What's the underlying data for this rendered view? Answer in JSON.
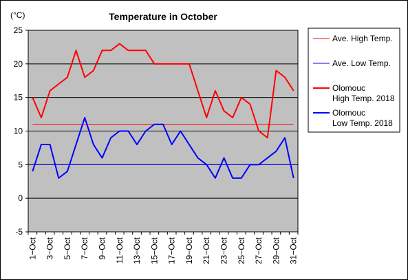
{
  "chart_data": {
    "type": "line",
    "title": "Temperature in October",
    "unit_label": "(°C)",
    "ylim": [
      -5,
      25
    ],
    "yticks": [
      -5,
      0,
      5,
      10,
      15,
      20,
      25
    ],
    "x": [
      "1-Oct",
      "2-Oct",
      "3-Oct",
      "4-Oct",
      "5-Oct",
      "6-Oct",
      "7-Oct",
      "8-Oct",
      "9-Oct",
      "10-Oct",
      "11-Oct",
      "12-Oct",
      "13-Oct",
      "14-Oct",
      "15-Oct",
      "16-Oct",
      "17-Oct",
      "18-Oct",
      "19-Oct",
      "20-Oct",
      "21-Oct",
      "22-Oct",
      "23-Oct",
      "24-Oct",
      "25-Oct",
      "26-Oct",
      "27-Oct",
      "28-Oct",
      "29-Oct",
      "30-Oct",
      "31-Oct"
    ],
    "xtick_labels": [
      "1-Oct",
      "3-Oct",
      "5-Oct",
      "7-Oct",
      "9-Oct",
      "11-Oct",
      "13-Oct",
      "15-Oct",
      "17-Oct",
      "19-Oct",
      "21-Oct",
      "23-Oct",
      "25-Oct",
      "27-Oct",
      "29-Oct",
      "31-Oct"
    ],
    "grid": true,
    "background": "#c0c0c0",
    "legend_position": "right",
    "series": [
      {
        "name": "Ave. High Temp.",
        "color": "#ff0000",
        "width": 1,
        "values": [
          11,
          11,
          11,
          11,
          11,
          11,
          11,
          11,
          11,
          11,
          11,
          11,
          11,
          11,
          11,
          11,
          11,
          11,
          11,
          11,
          11,
          11,
          11,
          11,
          11,
          11,
          11,
          11,
          11,
          11,
          11
        ]
      },
      {
        "name": "Ave. Low Temp.",
        "color": "#0000ff",
        "width": 1,
        "values": [
          5,
          5,
          5,
          5,
          5,
          5,
          5,
          5,
          5,
          5,
          5,
          5,
          5,
          5,
          5,
          5,
          5,
          5,
          5,
          5,
          5,
          5,
          5,
          5,
          5,
          5,
          5,
          5,
          5,
          5,
          5
        ]
      },
      {
        "name": "Olomouc\nHigh Temp. 2018",
        "color": "#ff0000",
        "width": 2,
        "values": [
          15,
          12,
          16,
          17,
          18,
          22,
          18,
          19,
          22,
          22,
          23,
          22,
          22,
          22,
          20,
          20,
          20,
          20,
          20,
          16,
          12,
          16,
          13,
          12,
          15,
          14,
          10,
          9,
          19,
          18,
          16
        ]
      },
      {
        "name": "Olomouc\nLow Temp. 2018",
        "color": "#0000ff",
        "width": 2,
        "values": [
          4,
          8,
          8,
          3,
          4,
          8,
          12,
          8,
          6,
          9,
          10,
          10,
          8,
          10,
          11,
          11,
          8,
          10,
          8,
          6,
          5,
          3,
          6,
          3,
          3,
          5,
          5,
          6,
          7,
          9,
          3
        ]
      }
    ],
    "legend": [
      {
        "lines": [
          "Ave. High Temp."
        ],
        "color": "#ff0000",
        "width": 1
      },
      {
        "lines": [
          "Ave. Low Temp."
        ],
        "color": "#0000ff",
        "width": 1
      },
      {
        "lines": [
          "Olomouc",
          "High Temp. 2018"
        ],
        "color": "#ff0000",
        "width": 2
      },
      {
        "lines": [
          "Olomouc",
          "Low Temp. 2018"
        ],
        "color": "#0000ff",
        "width": 2
      }
    ]
  }
}
